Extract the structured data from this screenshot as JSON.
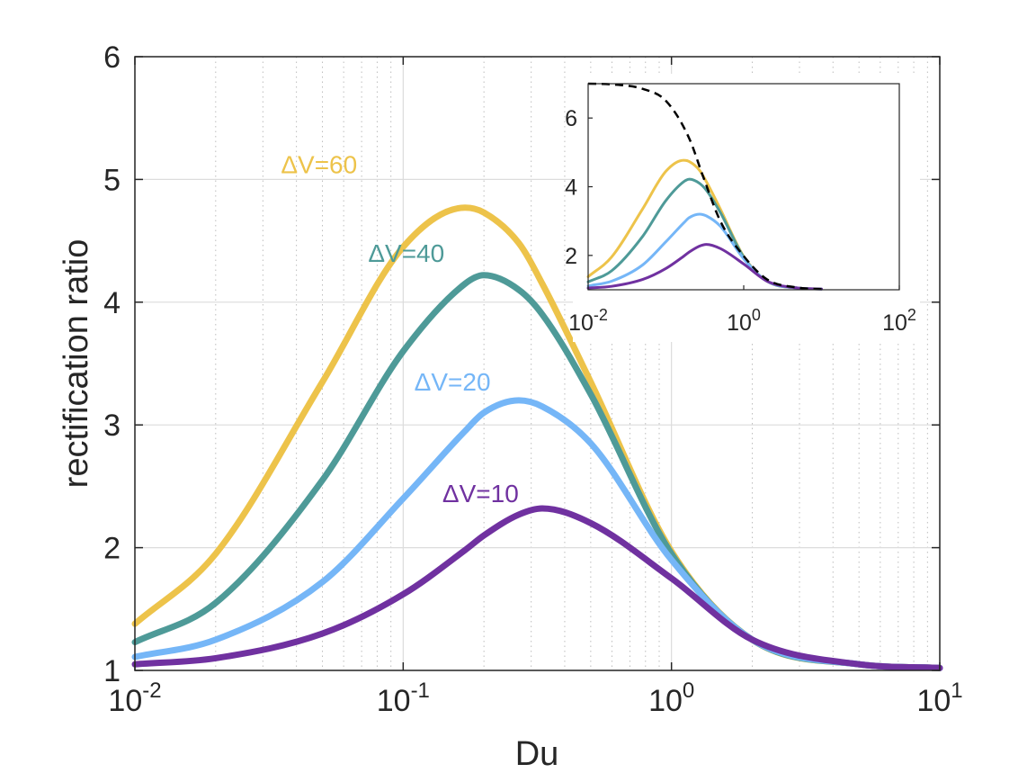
{
  "chart_data": [
    {
      "id": "main",
      "type": "line",
      "xscale": "log",
      "xlim": [
        0.01,
        10
      ],
      "ylim": [
        1,
        6
      ],
      "xlabel": "Du",
      "ylabel": "rectification ratio",
      "grid": true,
      "x_ticks": [
        {
          "value": 0.01,
          "base": "10",
          "exp": "-2"
        },
        {
          "value": 0.1,
          "base": "10",
          "exp": "-1"
        },
        {
          "value": 1,
          "base": "10",
          "exp": "0"
        },
        {
          "value": 10,
          "base": "10",
          "exp": "1"
        }
      ],
      "y_ticks": [
        {
          "value": 1,
          "label": "1"
        },
        {
          "value": 2,
          "label": "2"
        },
        {
          "value": 3,
          "label": "3"
        },
        {
          "value": 4,
          "label": "4"
        },
        {
          "value": 5,
          "label": "5"
        },
        {
          "value": 6,
          "label": "6"
        }
      ],
      "x": [
        0.01,
        0.02,
        0.05,
        0.1,
        0.17,
        0.2,
        0.27,
        0.33,
        0.5,
        1,
        2,
        5,
        10
      ],
      "series": [
        {
          "name": "ΔV=60",
          "label": "ΔV=60",
          "color": "#EDC34A",
          "label_pos": [
            0.035,
            5.05
          ],
          "values": [
            1.38,
            1.95,
            3.35,
            4.45,
            4.77,
            4.73,
            4.48,
            4.15,
            3.35,
            1.97,
            1.25,
            1.05,
            1.02
          ]
        },
        {
          "name": "ΔV=40",
          "label": "ΔV=40",
          "color": "#4E9A98",
          "label_pos": [
            0.074,
            4.33
          ],
          "values": [
            1.23,
            1.55,
            2.55,
            3.6,
            4.15,
            4.22,
            4.1,
            3.9,
            3.25,
            1.95,
            1.25,
            1.05,
            1.02
          ]
        },
        {
          "name": "ΔV=20",
          "label": "ΔV=20",
          "color": "#75B6F7",
          "label_pos": [
            0.11,
            3.28
          ],
          "values": [
            1.11,
            1.25,
            1.72,
            2.4,
            2.95,
            3.1,
            3.2,
            3.15,
            2.85,
            1.9,
            1.25,
            1.05,
            1.02
          ]
        },
        {
          "name": "ΔV=10",
          "label": "ΔV=10",
          "color": "#7031A0",
          "label_pos": [
            0.14,
            2.37
          ],
          "values": [
            1.05,
            1.1,
            1.3,
            1.62,
            1.98,
            2.1,
            2.27,
            2.32,
            2.2,
            1.75,
            1.25,
            1.05,
            1.02
          ]
        }
      ]
    },
    {
      "id": "inset",
      "type": "line",
      "xscale": "log",
      "xlim": [
        0.01,
        100
      ],
      "ylim": [
        1,
        7
      ],
      "grid": false,
      "x_ticks": [
        {
          "value": 0.01,
          "base": "10",
          "exp": "-2"
        },
        {
          "value": 1,
          "base": "10",
          "exp": "0"
        },
        {
          "value": 100,
          "base": "10",
          "exp": "2"
        }
      ],
      "y_ticks": [
        {
          "value": 2,
          "label": "2"
        },
        {
          "value": 4,
          "label": "4"
        },
        {
          "value": 6,
          "label": "6"
        }
      ],
      "x": [
        0.01,
        0.02,
        0.05,
        0.1,
        0.17,
        0.2,
        0.27,
        0.33,
        0.5,
        1,
        2,
        5,
        10
      ],
      "series": [
        {
          "name": "ΔV=60",
          "color": "#EDC34A",
          "values": [
            1.38,
            1.95,
            3.35,
            4.45,
            4.77,
            4.73,
            4.48,
            4.15,
            3.35,
            1.97,
            1.25,
            1.05,
            1.02
          ]
        },
        {
          "name": "ΔV=40",
          "color": "#4E9A98",
          "values": [
            1.23,
            1.55,
            2.55,
            3.6,
            4.15,
            4.22,
            4.1,
            3.9,
            3.25,
            1.95,
            1.25,
            1.05,
            1.02
          ]
        },
        {
          "name": "ΔV=20",
          "color": "#75B6F7",
          "values": [
            1.11,
            1.25,
            1.72,
            2.4,
            2.95,
            3.1,
            3.2,
            3.15,
            2.85,
            1.9,
            1.25,
            1.05,
            1.02
          ]
        },
        {
          "name": "ΔV=10",
          "color": "#7031A0",
          "values": [
            1.05,
            1.1,
            1.3,
            1.62,
            1.98,
            2.1,
            2.27,
            2.32,
            2.2,
            1.75,
            1.25,
            1.05,
            1.02
          ]
        }
      ],
      "envelope": {
        "name": "envelope",
        "color": "#000000",
        "dashed": true,
        "x": [
          0.01,
          0.02,
          0.05,
          0.1,
          0.2,
          0.3,
          0.5,
          1,
          2,
          5,
          10
        ],
        "values": [
          7.0,
          6.98,
          6.85,
          6.5,
          5.4,
          4.3,
          3.0,
          1.98,
          1.3,
          1.06,
          1.02
        ]
      }
    }
  ]
}
